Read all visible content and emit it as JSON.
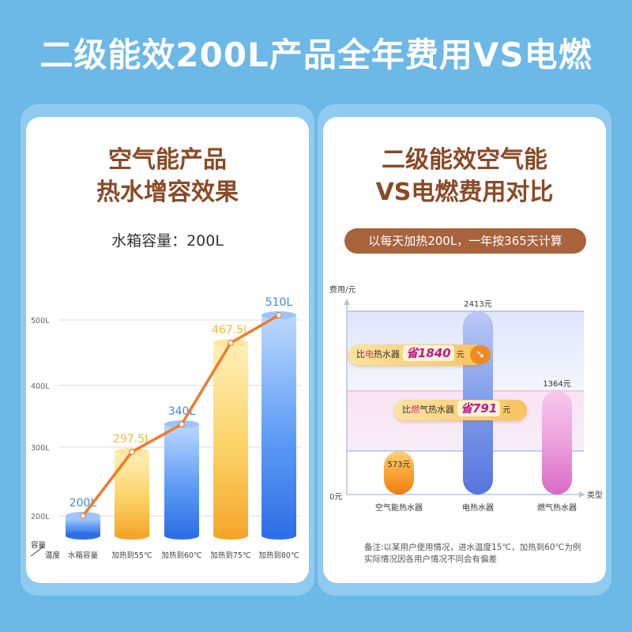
{
  "page_title": "二级能效200L产品全年费用VS电燃",
  "left_panel": {
    "title_line1": "空气能产品",
    "title_line2": "热水增容效果",
    "subtitle": "水箱容量：200L"
  },
  "right_panel": {
    "title_line1": "二级能效空气能",
    "title_line2": "VS电燃费用对比",
    "pill": "以每天加热200L，一年按365天计算",
    "note_line1": "备注:以某用户使用情况，进水温度15℃，加热到60℃为例",
    "note_line2": "实际情况因各用户情况不同会有偏差",
    "savings": [
      {
        "prefix": "比",
        "highlight": "电",
        "suffix": "热水器",
        "amount": "省1840",
        "unit": "元"
      },
      {
        "prefix": "比",
        "highlight": "燃",
        "suffix": "气热水器",
        "amount": "省791",
        "unit": "元"
      }
    ]
  },
  "chart_data": [
    {
      "type": "bar",
      "title": "",
      "xlabel": "温度",
      "ylabel": "容量",
      "categories": [
        "水箱容量",
        "加热到55℃",
        "加热到60℃",
        "加热到75℃",
        "加热到80℃"
      ],
      "values": [
        200,
        297.5,
        340,
        467.5,
        510
      ],
      "value_labels": [
        "200L",
        "297.5L",
        "340L",
        "467.5L",
        "510L"
      ],
      "y_ticks": [
        "200L",
        "300L",
        "400L",
        "500L"
      ],
      "ylim": [
        200,
        510
      ],
      "overlay_line": true,
      "colors": {
        "blue": "#3f86f0",
        "orange": "#f7b733",
        "line": "#f07a2a",
        "blue_label": "#3f86f0",
        "orange_label": "#f7b733"
      }
    },
    {
      "type": "bar",
      "title": "",
      "ylabel": "费用/元",
      "xlabel": "类型",
      "categories": [
        "空气能热水器",
        "电热水器",
        "燃气热水器"
      ],
      "values": [
        573,
        2413,
        1364
      ],
      "value_labels": [
        "573元",
        "2413元",
        "1364元"
      ],
      "y_ticks": [
        "0元"
      ],
      "ylim": [
        0,
        2413
      ],
      "colors": [
        "#f59a22",
        "#6a8ee8",
        "#e88ad0"
      ]
    }
  ]
}
